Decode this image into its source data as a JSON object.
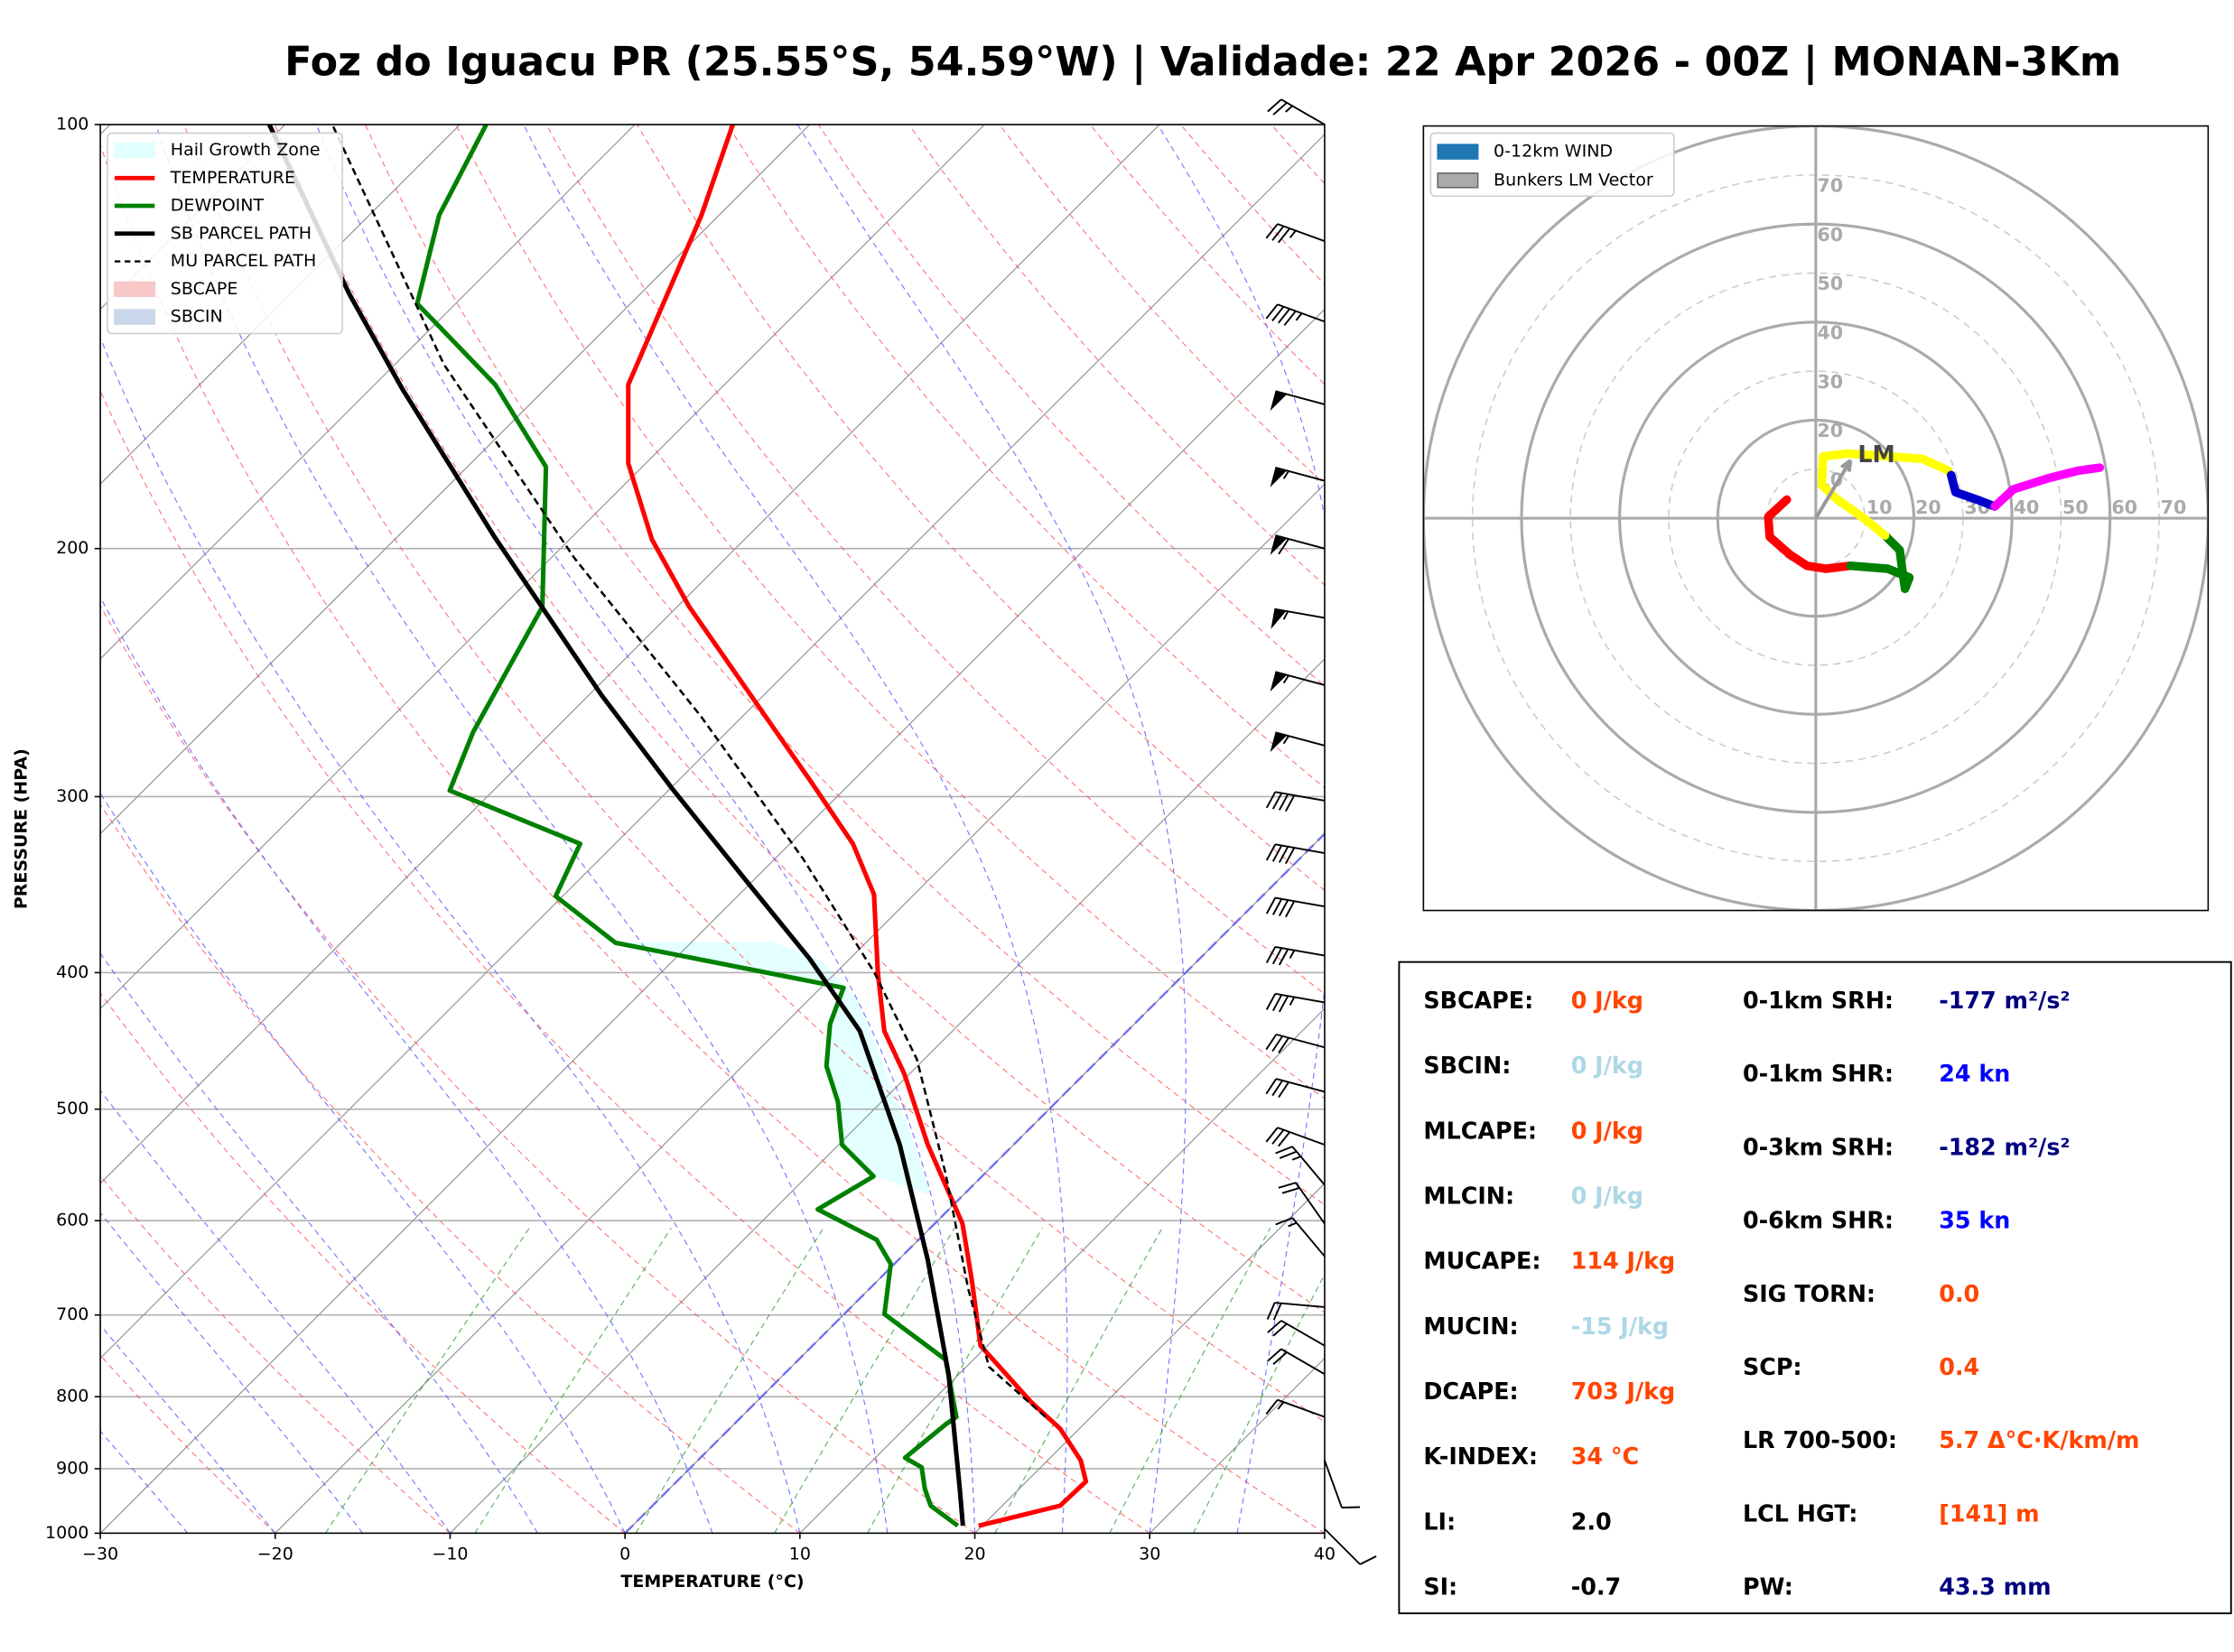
{
  "title": "Foz do Iguacu PR (25.55°S, 54.59°W) | Validade: 22 Apr 2026 - 00Z | MONAN-3Km",
  "chart_data": [
    {
      "type": "skewt",
      "xlabel": "TEMPERATURE (°C)",
      "ylabel": "PRESSURE (HPA)",
      "xlim": [
        -30,
        40
      ],
      "ylim": [
        1000,
        100
      ],
      "log_y": true,
      "grid": true,
      "freezing_isotherm": 0,
      "xticks": [
        {
          "value": -30,
          "label": "−30"
        },
        {
          "value": -20,
          "label": "−20"
        },
        {
          "value": -10,
          "label": "−10"
        },
        0,
        10,
        20,
        30,
        40
      ],
      "yticks": [
        100,
        200,
        300,
        400,
        500,
        600,
        700,
        800,
        900,
        1000
      ],
      "area_legend": [
        {
          "name": "Hail Growth Zone",
          "color": "#e0ffff"
        },
        {
          "name": "SBCAPE",
          "color": "#f8c8c8"
        },
        {
          "name": "SBCIN",
          "color": "#c8d8ea"
        }
      ],
      "series": [
        {
          "name": "TEMPERATURE",
          "color": "#ff0000",
          "dash": false,
          "pressure": [
            988,
            956,
            919,
            888,
            843,
            808,
            736,
            662,
            603,
            530,
            472,
            440,
            400,
            352,
            324,
            292,
            220,
            197,
            174,
            153,
            116,
            100
          ],
          "values": [
            19.8,
            23.3,
            23.4,
            21.9,
            18.9,
            15.8,
            9.6,
            5.4,
            1.6,
            -4.9,
            -10.3,
            -13.9,
            -17.6,
            -22.3,
            -26.4,
            -32.5,
            -49.3,
            -55.3,
            -61,
            -65.5,
            -71,
            -74.4
          ]
        },
        {
          "name": "DEWPOINT",
          "color": "#008000",
          "dash": false,
          "pressure": [
            988,
            956,
            930,
            898,
            884,
            837,
            827,
            753,
            699,
            644,
            619,
            589,
            558,
            530,
            494,
            466,
            435,
            410,
            381,
            353,
            324,
            297,
            270,
            220,
            175,
            153,
            134,
            116,
            100
          ],
          "values": [
            18.6,
            15.9,
            14.6,
            13.2,
            11.7,
            12.1,
            12.3,
            8.4,
            2.3,
            -0.2,
            -2.4,
            -7.5,
            -6.2,
            -9.8,
            -12.5,
            -15.2,
            -17.4,
            -18.7,
            -34.3,
            -40.4,
            -42,
            -52.5,
            -54.5,
            -57.7,
            -65.5,
            -73.1,
            -82.2,
            -86,
            -88.5
          ]
        },
        {
          "name": "SB PARCEL PATH",
          "color": "#000000",
          "dash": false,
          "pressure": [
            988,
            930,
            771,
            640,
            530,
            440,
            391,
            348,
            296,
            254,
            196,
            154,
            132,
            100
          ],
          "values": [
            18.9,
            16.6,
            9.4,
            1.7,
            -6.5,
            -15.3,
            -22.3,
            -29.7,
            -39.9,
            -49.3,
            -64.5,
            -78.2,
            -86.6,
            -100.9
          ]
        },
        {
          "name": "MU PARCEL PATH",
          "color": "#000000",
          "dash": true,
          "pressure": [
            827,
            762,
            670,
            556,
            461,
            400,
            332,
            263,
            203,
            148,
            100
          ],
          "values": [
            17.4,
            11.3,
            5.6,
            -2.2,
            -10.4,
            -17.8,
            -28.4,
            -42.4,
            -58.7,
            -77.2,
            -97.3
          ]
        }
      ],
      "winds": {
        "pressure": [
          993,
          888,
          827,
          771,
          736,
          691,
          636,
          603,
          566,
          530,
          486,
          452,
          420,
          389,
          359,
          329,
          302,
          276,
          250,
          224,
          200,
          179,
          158,
          138,
          121,
          100
        ],
        "direction": [
          135,
          160,
          290,
          300,
          300,
          275,
          320,
          325,
          320,
          290,
          285,
          285,
          280,
          280,
          280,
          280,
          280,
          285,
          285,
          280,
          285,
          285,
          285,
          290,
          290,
          300
        ],
        "speed": [
          10,
          10,
          15,
          20,
          20,
          20,
          15,
          20,
          25,
          30,
          30,
          30,
          35,
          35,
          40,
          40,
          40,
          55,
          55,
          55,
          60,
          55,
          50,
          45,
          35,
          25
        ]
      }
    },
    {
      "type": "hodograph",
      "xlim": [
        -80,
        80
      ],
      "ylim": [
        -80,
        80
      ],
      "rticks": [
        10,
        20,
        30,
        40,
        50,
        60,
        70
      ],
      "legend": [
        {
          "name": "0-12km WIND",
          "color": "#1f77b4"
        },
        {
          "name": "Bunkers LM Vector",
          "color": "#aaaaaa"
        }
      ],
      "segments": [
        {
          "color": "#ff0000",
          "u": [
            -5.9,
            -9.7,
            -9.4,
            -5.3,
            -1.8,
            2.1,
            7.1
          ],
          "v": [
            3.8,
            0.3,
            -3.8,
            -7.4,
            -9.7,
            -10.3,
            -9.7
          ]
        },
        {
          "color": "#008000",
          "u": [
            7.1,
            14.7,
            19.1,
            18.2,
            17.6,
            17.1,
            14.1
          ],
          "v": [
            -9.7,
            -10.3,
            -12.1,
            -14.4,
            -10.3,
            -6.5,
            -3.5
          ]
        },
        {
          "color": "#ffff00",
          "u": [
            14.1,
            9.4,
            4.4,
            1.2,
            1.5,
            6.5,
            14.7,
            21.8,
            27.1
          ],
          "v": [
            -3.5,
            0.3,
            3.8,
            6.8,
            12.6,
            13.2,
            12.6,
            12.1,
            9.7
          ]
        },
        {
          "color": "#0000cd",
          "u": [
            27.6,
            28.5,
            32.9,
            36.5
          ],
          "v": [
            8.8,
            5.3,
            3.8,
            2.4
          ]
        },
        {
          "color": "#ff00ff",
          "u": [
            36.5,
            40.3,
            47.6,
            53.5,
            57.9
          ],
          "v": [
            2.4,
            5.9,
            8.2,
            9.7,
            10.3
          ]
        }
      ],
      "storm_motion": {
        "label": "LM",
        "u": 7.1,
        "v": 11.8
      }
    }
  ],
  "indices": {
    "left": [
      {
        "label": "SBCAPE:",
        "value": "0 J/kg",
        "color": "#ff4500"
      },
      {
        "label": "SBCIN:",
        "value": "0 J/kg",
        "color": "#add8e6"
      },
      {
        "label": "MLCAPE:",
        "value": "0 J/kg",
        "color": "#ff4500"
      },
      {
        "label": "MLCIN:",
        "value": "0 J/kg",
        "color": "#add8e6"
      },
      {
        "label": "MUCAPE:",
        "value": "114 J/kg",
        "color": "#ff4500"
      },
      {
        "label": "MUCIN:",
        "value": "-15 J/kg",
        "color": "#add8e6"
      },
      {
        "label": "DCAPE:",
        "value": "703 J/kg",
        "color": "#ff4500"
      },
      {
        "label": "K-INDEX:",
        "value": "34 °C",
        "color": "#ff4500"
      },
      {
        "label": "LI:",
        "value": "2.0",
        "color": "#000000"
      },
      {
        "label": "SI:",
        "value": "-0.7",
        "color": "#000000"
      }
    ],
    "right": [
      {
        "label": "0-1km SRH:",
        "value": "-177 m²/s²",
        "color": "#000080"
      },
      {
        "label": "0-1km SHR:",
        "value": "24 kn",
        "color": "#0000ff"
      },
      {
        "label": "0-3km SRH:",
        "value": "-182 m²/s²",
        "color": "#000080"
      },
      {
        "label": "0-6km SHR:",
        "value": "35 kn",
        "color": "#0000ff"
      },
      {
        "label": "SIG TORN:",
        "value": "0.0",
        "color": "#ff4500"
      },
      {
        "label": "SCP:",
        "value": "0.4",
        "color": "#ff4500"
      },
      {
        "label": "LR 700-500:",
        "value": "5.7 Δ°C·K/km/m",
        "color": "#ff4500"
      },
      {
        "label": "LCL HGT:",
        "value": "[141] m",
        "color": "#ff4500"
      },
      {
        "label": "PW:",
        "value": "43.3 mm",
        "color": "#000080"
      }
    ]
  }
}
